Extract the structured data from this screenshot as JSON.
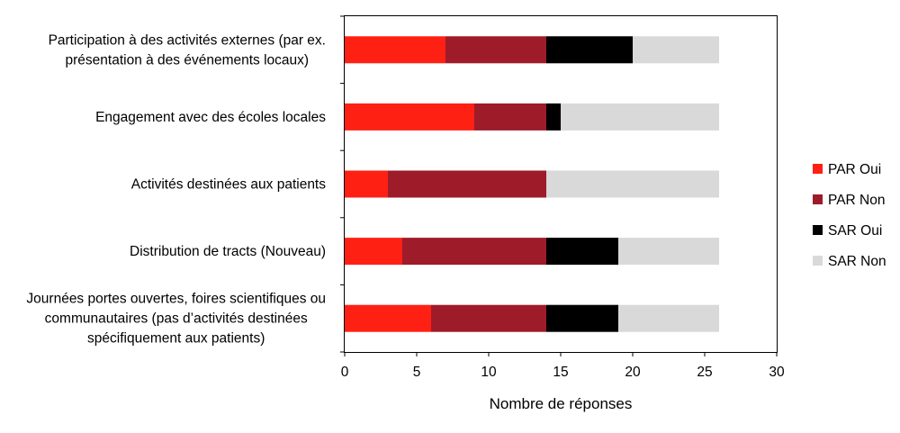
{
  "chart_data": {
    "type": "bar",
    "orientation": "horizontal",
    "stacked": true,
    "categories": [
      [
        "Participation à des activités externes (par ex.",
        "présentation à des événements locaux)"
      ],
      [
        "Engagement avec des écoles locales"
      ],
      [
        "Activités destinées aux patients"
      ],
      [
        "Distribution de tracts (Nouveau)"
      ],
      [
        "Journées portes ouvertes, foires scientifiques ou",
        "communautaires (pas d’activités destinées",
        "spécifiquement aux patients)"
      ]
    ],
    "series": [
      {
        "name": "PAR Oui",
        "color": "#ff2014",
        "values": [
          7,
          9,
          3,
          4,
          6
        ]
      },
      {
        "name": "PAR Non",
        "color": "#9e1b2a",
        "values": [
          7,
          5,
          11,
          10,
          8
        ]
      },
      {
        "name": "SAR Oui",
        "color": "#000000",
        "values": [
          6,
          1,
          0,
          5,
          5
        ]
      },
      {
        "name": "SAR Non",
        "color": "#d9d9d9",
        "values": [
          6,
          11,
          12,
          7,
          7
        ]
      }
    ],
    "xlabel": "Nombre de réponses",
    "xlim": [
      0,
      30
    ],
    "xticks": [
      0,
      5,
      10,
      15,
      20,
      25,
      30
    ],
    "grid": false,
    "legend_position": "right"
  }
}
